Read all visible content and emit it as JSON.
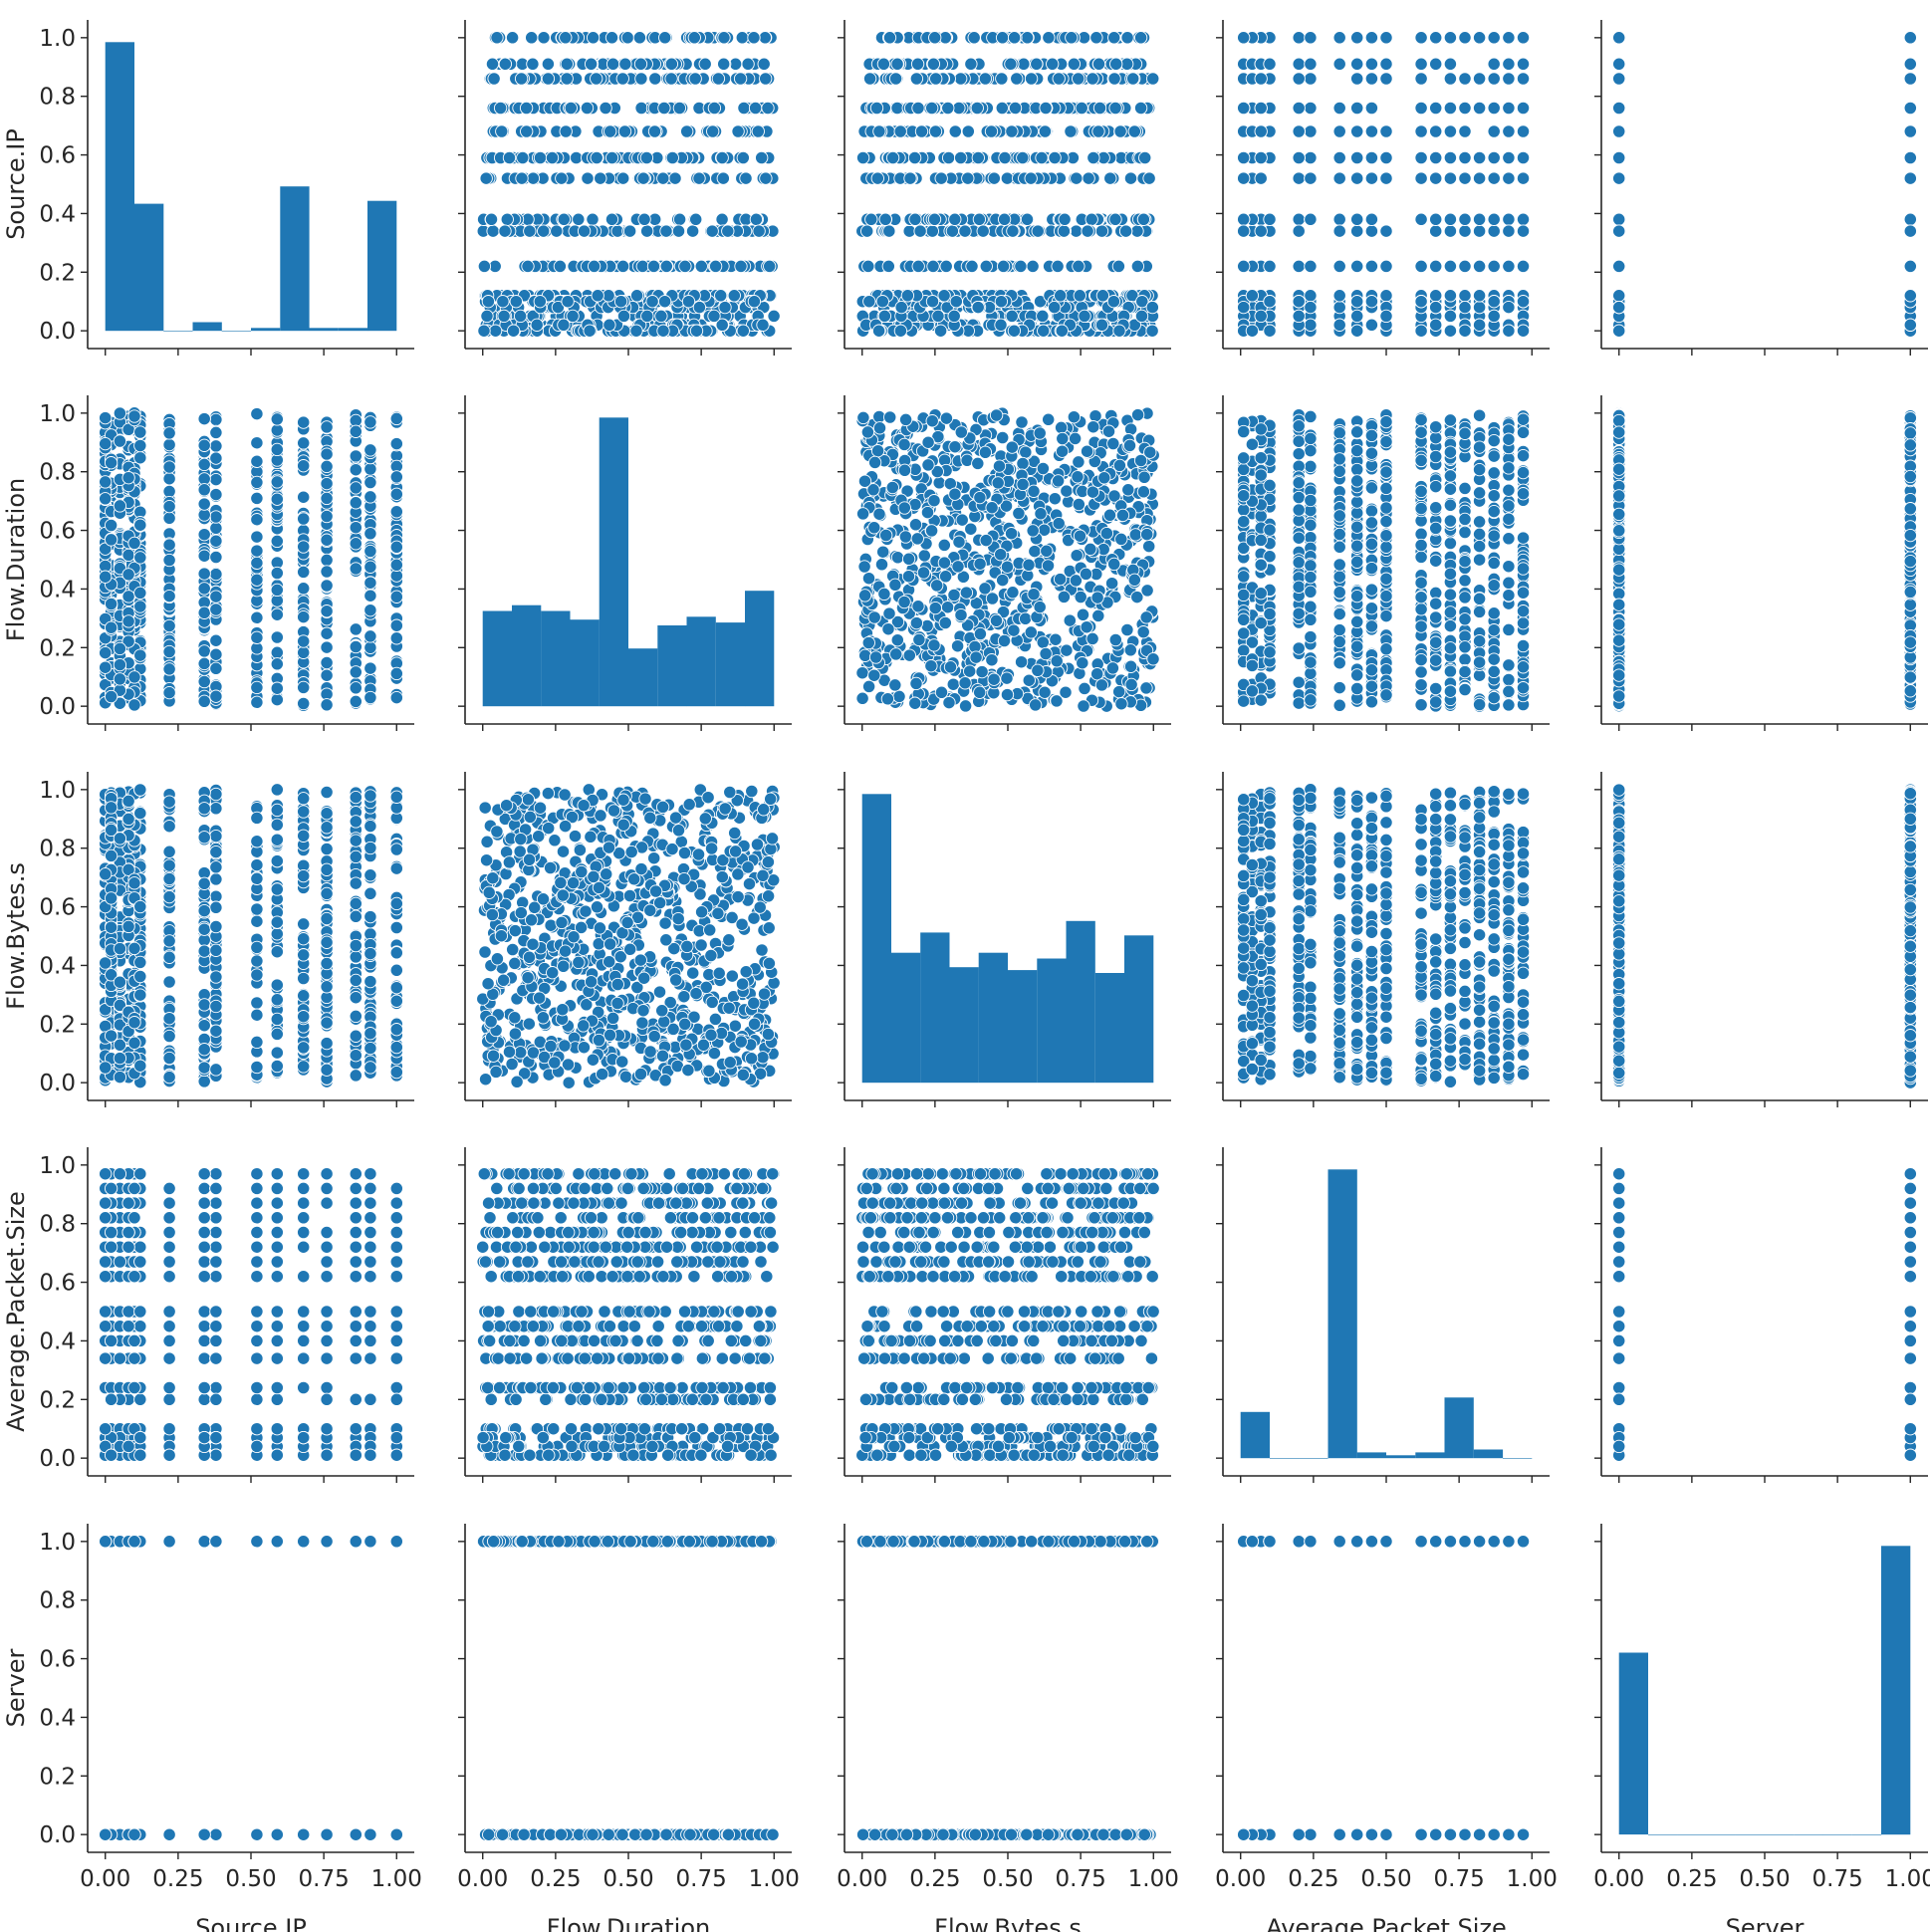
{
  "chart_data": {
    "type": "scatter",
    "subtype": "pairplot",
    "title": "",
    "variables": [
      "Source.IP",
      "Flow.Duration",
      "Flow.Bytes.s",
      "Average.Packet.Size",
      "Server"
    ],
    "xlabels": [
      "Source.IP",
      "Flow.Duration",
      "Flow.Bytes.s",
      "Average.Packet.Size",
      "Server"
    ],
    "ylabels": [
      "Source.IP",
      "Flow.Duration",
      "Flow.Bytes.s",
      "Average.Packet.Size",
      "Server"
    ],
    "axis_range": [
      0,
      1
    ],
    "tick_values": [
      0.0,
      0.2,
      0.4,
      0.6,
      0.8,
      1.0
    ],
    "tick_labels": [
      "0.0",
      "0.2",
      "0.4",
      "0.6",
      "0.8",
      "1.0"
    ],
    "x_tick_values": [
      0.0,
      0.25,
      0.5,
      0.75,
      1.0
    ],
    "x_tick_labels": [
      "0.00",
      "0.25",
      "0.50",
      "0.75",
      "1.00"
    ],
    "grid": false,
    "marker_color": "#1f77b4",
    "marker_edge_color": "#ffffff",
    "level_sets": {
      "Source.IP": [
        0.0,
        0.02,
        0.05,
        0.08,
        0.1,
        0.12,
        0.22,
        0.34,
        0.38,
        0.52,
        0.59,
        0.68,
        0.76,
        0.86,
        0.91,
        1.0
      ],
      "Average.Packet.Size": [
        0.01,
        0.04,
        0.07,
        0.1,
        0.2,
        0.24,
        0.34,
        0.4,
        0.45,
        0.5,
        0.62,
        0.67,
        0.72,
        0.77,
        0.82,
        0.87,
        0.92,
        0.97
      ],
      "Server": [
        0.0,
        1.0
      ]
    },
    "histograms": [
      {
        "variable": "Source.IP",
        "bin_edges": [
          0.0,
          0.1,
          0.2,
          0.3,
          0.4,
          0.5,
          0.6,
          0.7,
          0.8,
          0.9,
          1.0
        ],
        "heights": [
          1.0,
          0.44,
          0.0,
          0.03,
          0.0,
          0.01,
          0.5,
          0.01,
          0.01,
          0.45
        ]
      },
      {
        "variable": "Flow.Duration",
        "bin_edges": [
          0.0,
          0.1,
          0.2,
          0.3,
          0.4,
          0.5,
          0.6,
          0.7,
          0.8,
          0.9,
          1.0
        ],
        "heights": [
          0.33,
          0.35,
          0.33,
          0.3,
          1.0,
          0.2,
          0.28,
          0.31,
          0.29,
          0.4
        ]
      },
      {
        "variable": "Flow.Bytes.s",
        "bin_edges": [
          0.0,
          0.1,
          0.2,
          0.3,
          0.4,
          0.5,
          0.6,
          0.7,
          0.8,
          0.9,
          1.0
        ],
        "heights": [
          1.0,
          0.45,
          0.52,
          0.4,
          0.45,
          0.39,
          0.43,
          0.56,
          0.38,
          0.51
        ]
      },
      {
        "variable": "Average.Packet.Size",
        "bin_edges": [
          0.0,
          0.1,
          0.2,
          0.3,
          0.4,
          0.5,
          0.6,
          0.7,
          0.8,
          0.9,
          1.0
        ],
        "heights": [
          0.16,
          0.0,
          0.0,
          1.0,
          0.02,
          0.01,
          0.02,
          0.21,
          0.03,
          0.0
        ]
      },
      {
        "variable": "Server",
        "bin_edges": [
          0.0,
          0.1,
          0.2,
          0.3,
          0.4,
          0.5,
          0.6,
          0.7,
          0.8,
          0.9,
          1.0
        ],
        "heights": [
          0.63,
          0.0,
          0.0,
          0.0,
          0.0,
          0.0,
          0.0,
          0.0,
          0.0,
          1.0
        ]
      }
    ]
  }
}
